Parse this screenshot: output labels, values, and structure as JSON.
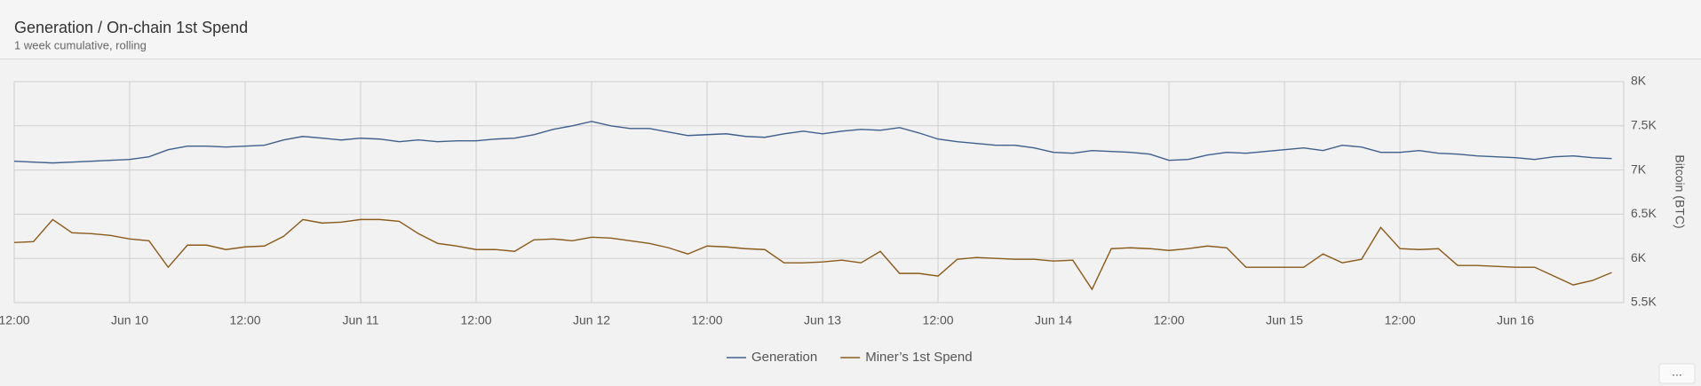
{
  "chart_data": {
    "type": "line",
    "title": "Generation / On-chain 1st Spend",
    "subtitle": "1 week cumulative, rolling",
    "y_label": "Bitcoin (BTC)",
    "x": [
      "06-09T12:00",
      "06-09T14:00",
      "06-09T16:00",
      "06-09T18:00",
      "06-09T20:00",
      "06-09T22:00",
      "06-10T00:00",
      "06-10T02:00",
      "06-10T04:00",
      "06-10T06:00",
      "06-10T08:00",
      "06-10T10:00",
      "06-10T12:00",
      "06-10T14:00",
      "06-10T16:00",
      "06-10T18:00",
      "06-10T20:00",
      "06-10T22:00",
      "06-11T00:00",
      "06-11T02:00",
      "06-11T04:00",
      "06-11T06:00",
      "06-11T08:00",
      "06-11T10:00",
      "06-11T12:00",
      "06-11T14:00",
      "06-11T16:00",
      "06-11T18:00",
      "06-11T20:00",
      "06-11T22:00",
      "06-12T00:00",
      "06-12T02:00",
      "06-12T04:00",
      "06-12T06:00",
      "06-12T08:00",
      "06-12T10:00",
      "06-12T12:00",
      "06-12T14:00",
      "06-12T16:00",
      "06-12T18:00",
      "06-12T20:00",
      "06-12T22:00",
      "06-13T00:00",
      "06-13T02:00",
      "06-13T04:00",
      "06-13T06:00",
      "06-13T08:00",
      "06-13T10:00",
      "06-13T12:00",
      "06-13T14:00",
      "06-13T16:00",
      "06-13T18:00",
      "06-13T20:00",
      "06-13T22:00",
      "06-14T00:00",
      "06-14T02:00",
      "06-14T04:00",
      "06-14T06:00",
      "06-14T08:00",
      "06-14T10:00",
      "06-14T12:00",
      "06-14T14:00",
      "06-14T16:00",
      "06-14T18:00",
      "06-14T20:00",
      "06-14T22:00",
      "06-15T00:00",
      "06-15T02:00",
      "06-15T04:00",
      "06-15T06:00",
      "06-15T08:00",
      "06-15T10:00",
      "06-15T12:00",
      "06-15T14:00",
      "06-15T16:00",
      "06-15T18:00",
      "06-15T20:00",
      "06-15T22:00",
      "06-16T00:00",
      "06-16T02:00",
      "06-16T04:00",
      "06-16T06:00",
      "06-16T08:00",
      "06-16T10:00"
    ],
    "xlim": [
      "06-09T12:00",
      "06-16T11:15"
    ],
    "xticks": [
      {
        "value": "06-09T12:00",
        "label": "12:00"
      },
      {
        "value": "06-10T00:00",
        "label": "Jun 10"
      },
      {
        "value": "06-10T12:00",
        "label": "12:00"
      },
      {
        "value": "06-11T00:00",
        "label": "Jun 11"
      },
      {
        "value": "06-11T12:00",
        "label": "12:00"
      },
      {
        "value": "06-12T00:00",
        "label": "Jun 12"
      },
      {
        "value": "06-12T12:00",
        "label": "12:00"
      },
      {
        "value": "06-13T00:00",
        "label": "Jun 13"
      },
      {
        "value": "06-13T12:00",
        "label": "12:00"
      },
      {
        "value": "06-14T00:00",
        "label": "Jun 14"
      },
      {
        "value": "06-14T12:00",
        "label": "12:00"
      },
      {
        "value": "06-15T00:00",
        "label": "Jun 15"
      },
      {
        "value": "06-15T12:00",
        "label": "12:00"
      },
      {
        "value": "06-16T00:00",
        "label": "Jun 16"
      }
    ],
    "ylim": [
      5500,
      8000
    ],
    "yticks": [
      {
        "value": 5500,
        "label": "5.5K"
      },
      {
        "value": 6000,
        "label": "6K"
      },
      {
        "value": 6500,
        "label": "6.5K"
      },
      {
        "value": 7000,
        "label": "7K"
      },
      {
        "value": 7500,
        "label": "7.5K"
      },
      {
        "value": 8000,
        "label": "8K"
      }
    ],
    "grid": true,
    "legend": "bottom",
    "series": [
      {
        "name": "Generation",
        "color": "#3f5f8f",
        "values": [
          7100,
          7090,
          7080,
          7090,
          7100,
          7110,
          7120,
          7150,
          7230,
          7270,
          7270,
          7260,
          7270,
          7280,
          7340,
          7380,
          7360,
          7340,
          7360,
          7350,
          7320,
          7340,
          7320,
          7330,
          7330,
          7350,
          7360,
          7400,
          7460,
          7500,
          7550,
          7500,
          7470,
          7470,
          7430,
          7390,
          7400,
          7410,
          7380,
          7370,
          7410,
          7440,
          7410,
          7440,
          7460,
          7450,
          7480,
          7420,
          7350,
          7320,
          7300,
          7280,
          7280,
          7250,
          7200,
          7190,
          7220,
          7210,
          7200,
          7180,
          7110,
          7120,
          7170,
          7200,
          7190,
          7210,
          7230,
          7250,
          7220,
          7280,
          7260,
          7200,
          7200,
          7220,
          7190,
          7180,
          7160,
          7150,
          7140,
          7120,
          7150,
          7160,
          7140,
          7130
        ]
      },
      {
        "name": "Miner’s 1st Spend",
        "color": "#8b5a1a",
        "values": [
          6180,
          6190,
          6440,
          6290,
          6280,
          6260,
          6220,
          6200,
          5900,
          6150,
          6150,
          6100,
          6130,
          6140,
          6250,
          6440,
          6400,
          6410,
          6440,
          6440,
          6420,
          6280,
          6170,
          6140,
          6100,
          6100,
          6080,
          6210,
          6220,
          6200,
          6240,
          6230,
          6200,
          6170,
          6120,
          6050,
          6140,
          6130,
          6110,
          6100,
          5950,
          5950,
          5960,
          5980,
          5950,
          6080,
          5830,
          5830,
          5800,
          5990,
          6010,
          6000,
          5990,
          5990,
          5970,
          5980,
          5650,
          6110,
          6120,
          6110,
          6090,
          6110,
          6140,
          6120,
          5900,
          5900,
          5900,
          5900,
          6050,
          5950,
          5990,
          6350,
          6110,
          6100,
          6110,
          5920,
          5920,
          5910,
          5900,
          5900,
          5800,
          5700,
          5750,
          5840
        ]
      }
    ]
  }
}
